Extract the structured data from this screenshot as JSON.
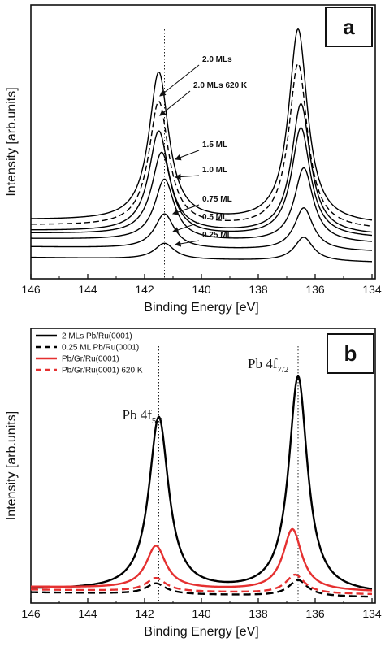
{
  "chart_data": [
    {
      "panel": "a",
      "type": "line",
      "xlabel": "Binding Energy [eV]",
      "ylabel": "Intensity [arb.units]",
      "xlim": [
        146,
        134
      ],
      "x_reversed": true,
      "ylim": [
        0,
        10
      ],
      "x_ticks": [
        146,
        144,
        142,
        140,
        138,
        136,
        134
      ],
      "y_ticks_shown": false,
      "reference_lines": [
        141.3,
        136.5
      ],
      "panel_label": "a",
      "series": [
        {
          "name": "0.25 ML",
          "peaks": [
            141.3,
            136.4
          ],
          "heights": [
            0.6,
            0.9
          ],
          "baseline": 0.5,
          "style": "solid"
        },
        {
          "name": "0.5 ML",
          "peaks": [
            141.3,
            136.4
          ],
          "heights": [
            1.3,
            1.6
          ],
          "baseline": 0.9,
          "style": "solid"
        },
        {
          "name": "0.75 ML",
          "peaks": [
            141.3,
            136.4
          ],
          "heights": [
            2.3,
            2.8
          ],
          "baseline": 1.2,
          "style": "solid"
        },
        {
          "name": "1.0 ML",
          "peaks": [
            141.4,
            136.5
          ],
          "heights": [
            3.1,
            4.1
          ],
          "baseline": 1.4,
          "style": "solid"
        },
        {
          "name": "1.5 ML",
          "peaks": [
            141.5,
            136.5
          ],
          "heights": [
            3.8,
            4.9
          ],
          "baseline": 1.5,
          "style": "solid"
        },
        {
          "name": "2.0 MLs 620 K",
          "peaks": [
            141.5,
            136.6
          ],
          "heights": [
            4.7,
            6.2
          ],
          "baseline": 1.7,
          "style": "dashed"
        },
        {
          "name": "2.0 MLs",
          "peaks": [
            141.5,
            136.6
          ],
          "heights": [
            5.6,
            7.3
          ],
          "baseline": 1.9,
          "style": "solid"
        }
      ]
    },
    {
      "panel": "b",
      "type": "line",
      "xlabel": "Binding Energy [eV]",
      "ylabel": "Intensity [arb.units]",
      "xlim": [
        146,
        134
      ],
      "x_reversed": true,
      "ylim": [
        0,
        10
      ],
      "x_ticks": [
        146,
        144,
        142,
        140,
        138,
        136,
        134
      ],
      "y_ticks_shown": false,
      "reference_lines": [
        141.5,
        136.6
      ],
      "panel_label": "b",
      "annotations": [
        {
          "base": "Pb 4f",
          "sub": "5/2",
          "x": 141.5
        },
        {
          "base": "Pb 4f",
          "sub": "7/2",
          "x": 136.6
        }
      ],
      "legend_position": "top-left",
      "series": [
        {
          "name": "2 MLs Pb/Ru(0001)",
          "color": "#000000",
          "style": "solid",
          "peaks": [
            141.5,
            136.6
          ],
          "heights": [
            6.5,
            8.1
          ],
          "baseline": 0.2
        },
        {
          "name": "0.25 ML Pb/Ru(0001)",
          "color": "#000000",
          "style": "dashed",
          "peaks": [
            141.6,
            136.6
          ],
          "heights": [
            0.4,
            0.6
          ],
          "baseline": 0.1
        },
        {
          "name": "Pb/Gr/Ru(0001)",
          "color": "#e53030",
          "style": "solid",
          "peaks": [
            141.6,
            136.8
          ],
          "heights": [
            1.6,
            2.3
          ],
          "baseline": 0.3
        },
        {
          "name": "Pb/Gr/Ru(0001) 620 K",
          "color": "#e53030",
          "style": "dashed",
          "peaks": [
            141.6,
            136.7
          ],
          "heights": [
            0.5,
            0.7
          ],
          "baseline": 0.2
        }
      ]
    }
  ]
}
